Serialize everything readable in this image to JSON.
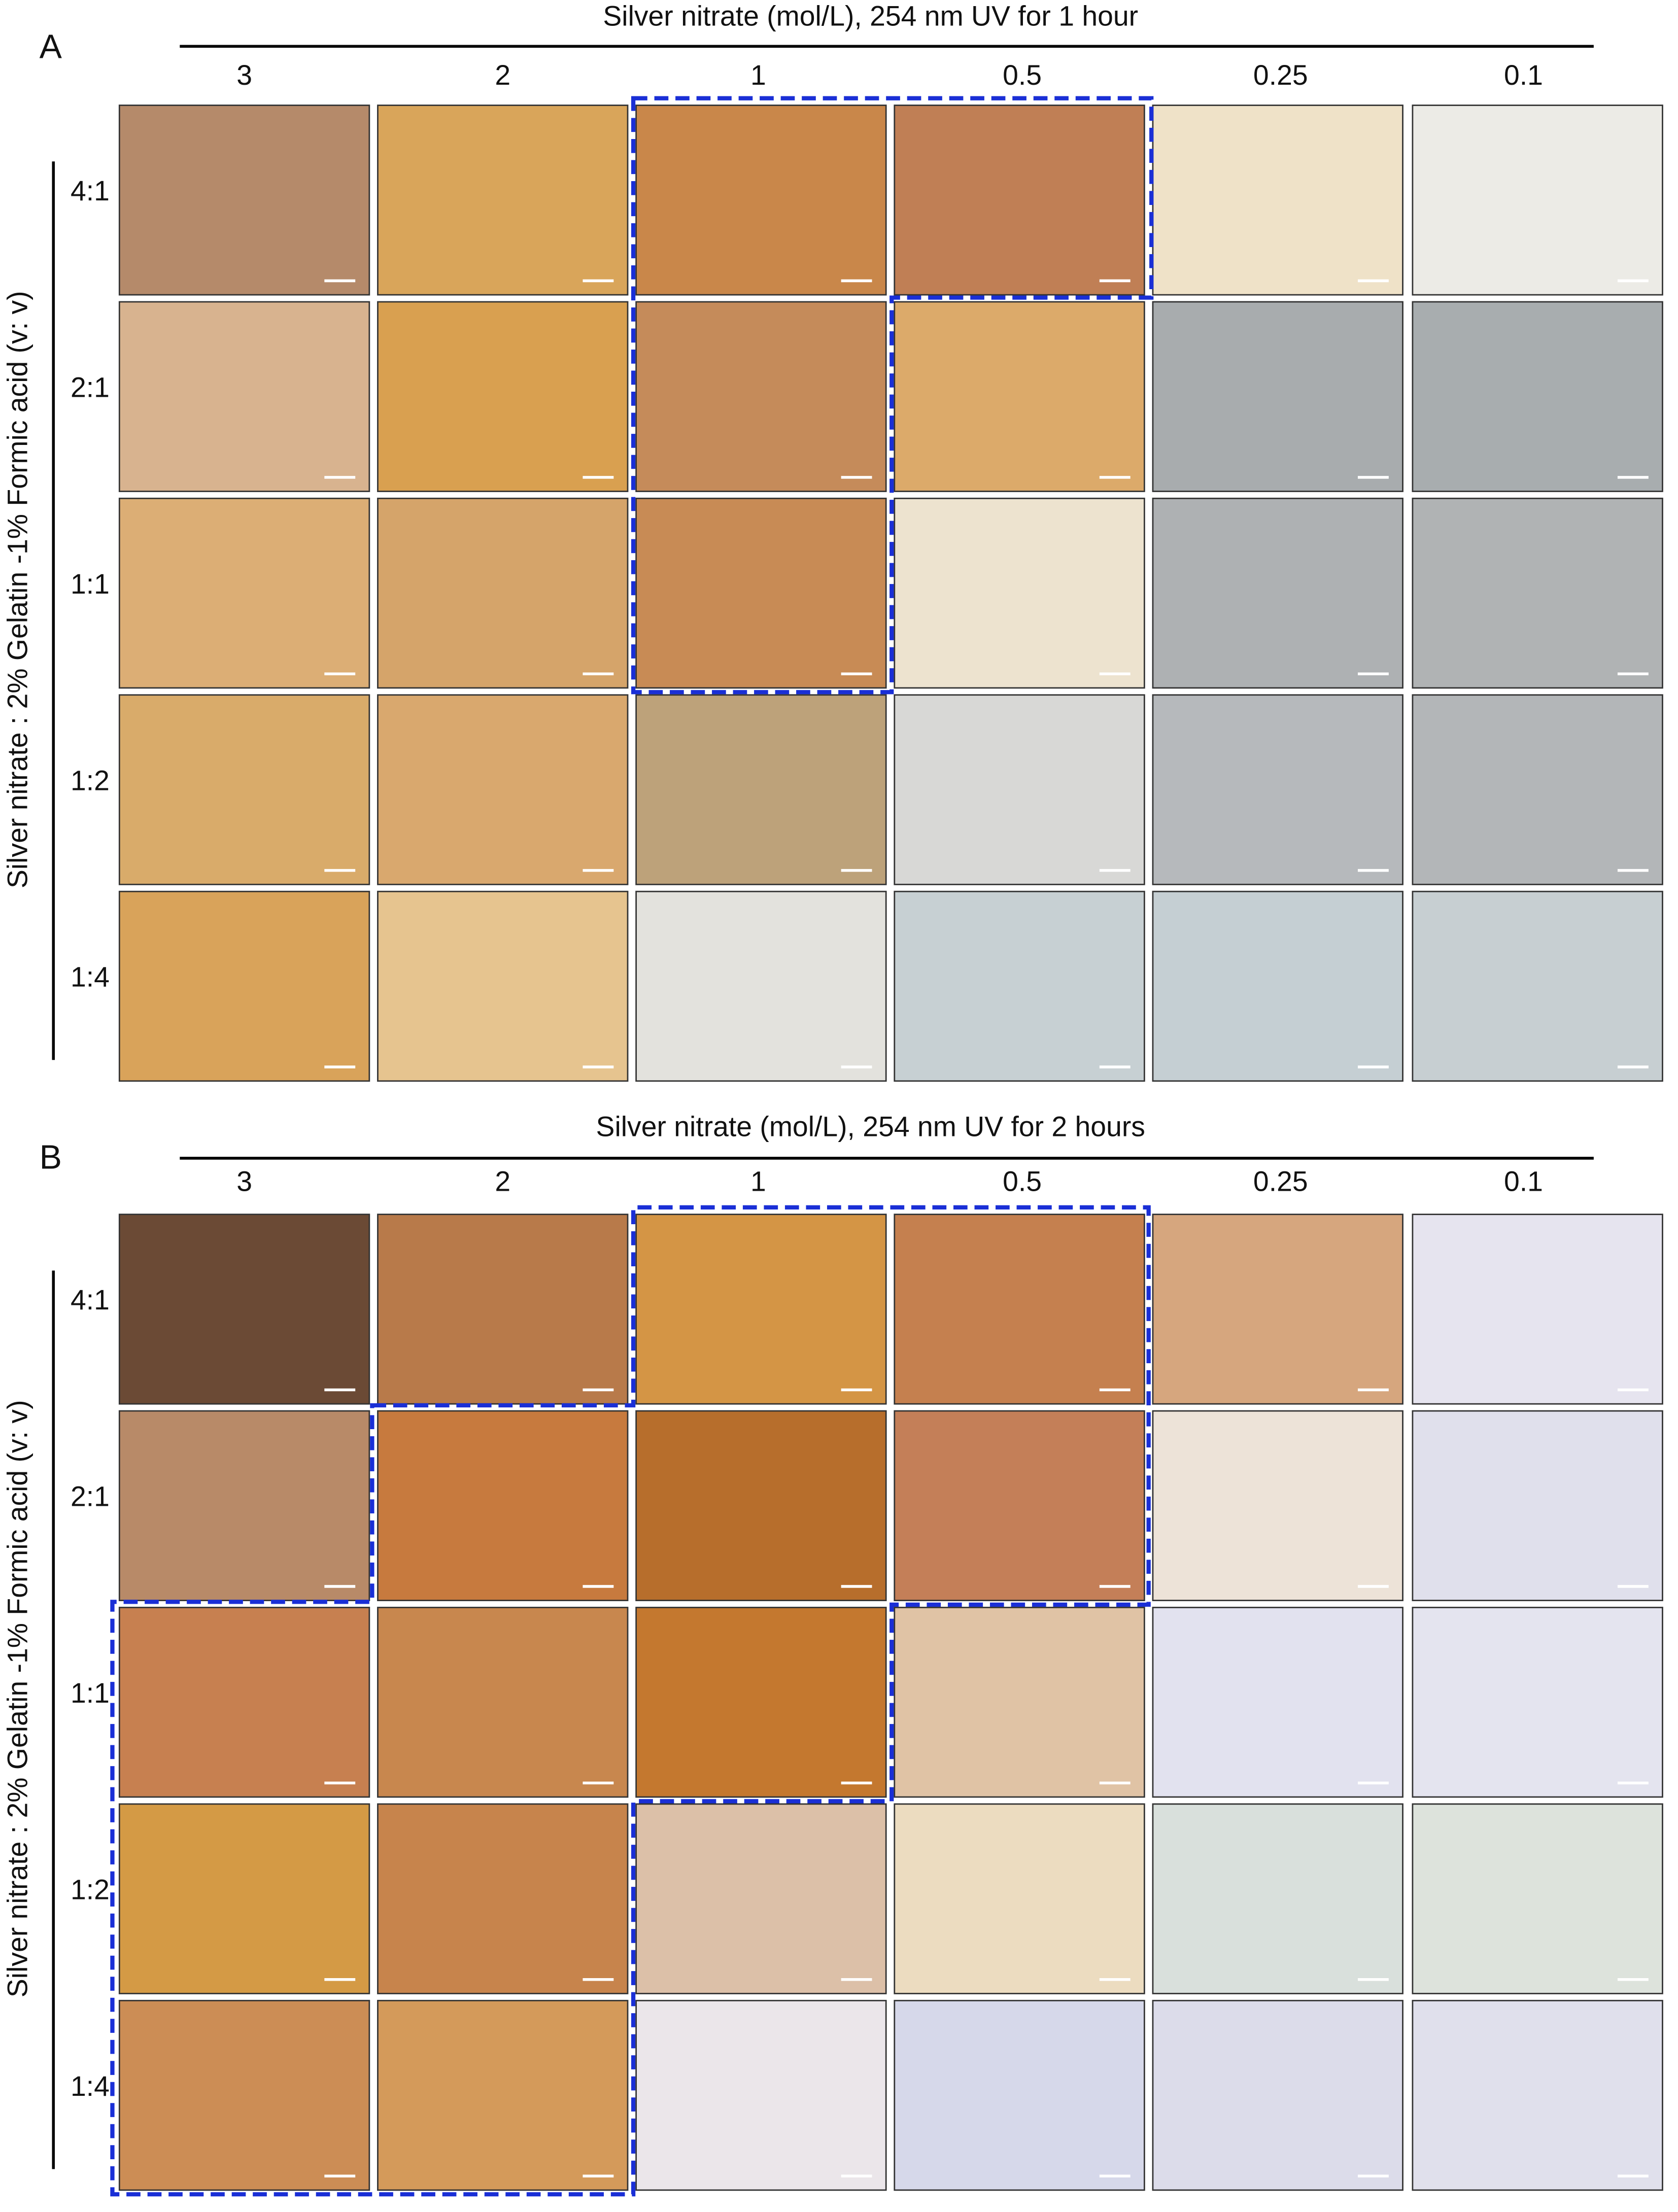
{
  "panels": [
    {
      "label": "A",
      "title": "Silver nitrate (mol/L),  254 nm UV for 1 hour",
      "columns": [
        "3",
        "2",
        "1",
        "0.5",
        "0.25",
        "0.1"
      ],
      "rows": [
        "4:1",
        "2:1",
        "1:1",
        "1:2",
        "1:4"
      ],
      "row_axis_label": "Silver nitrate : 2% Gelatin -1% Formic acid (v: v)"
    },
    {
      "label": "B",
      "title": "Silver nitrate (mol/L),  254 nm UV for 2 hours",
      "columns": [
        "3",
        "2",
        "1",
        "0.5",
        "0.25",
        "0.1"
      ],
      "rows": [
        "4:1",
        "2:1",
        "1:1",
        "1:2",
        "1:4"
      ],
      "row_axis_label": "Silver nitrate : 2% Gelatin -1% Formic acid (v: v)"
    }
  ]
}
